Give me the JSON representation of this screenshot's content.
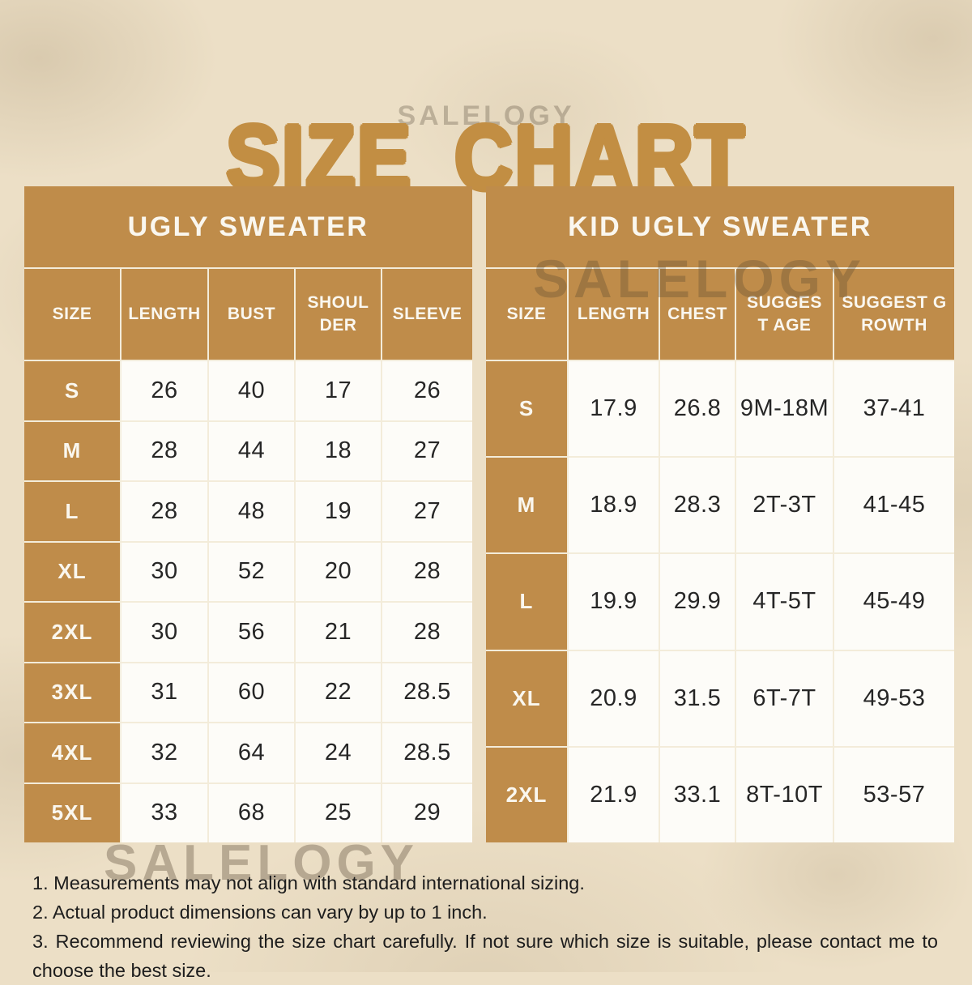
{
  "title": "SIZE CHART",
  "brand_watermark": "SALELOGY",
  "chart_data": [
    {
      "type": "table",
      "title": "UGLY SWEATER",
      "columns": [
        "SIZE",
        "LENGTH",
        "BUST",
        "SHOULDER",
        "SLEEVE"
      ],
      "rows": [
        [
          "S",
          26,
          40,
          17,
          26
        ],
        [
          "M",
          28,
          44,
          18,
          27
        ],
        [
          "L",
          28,
          48,
          19,
          27
        ],
        [
          "XL",
          30,
          52,
          20,
          28
        ],
        [
          "2XL",
          30,
          56,
          21,
          28
        ],
        [
          "3XL",
          31,
          60,
          22,
          28.5
        ],
        [
          "4XL",
          32,
          64,
          24,
          28.5
        ],
        [
          "5XL",
          33,
          68,
          25,
          29
        ]
      ]
    },
    {
      "type": "table",
      "title": "KID UGLY SWEATER",
      "columns": [
        "SIZE",
        "LENGTH",
        "CHEST",
        "SUGGEST AGE",
        "SUGGEST GROWTH"
      ],
      "rows": [
        [
          "S",
          17.9,
          26.8,
          "9M-18M",
          "37-41"
        ],
        [
          "M",
          18.9,
          28.3,
          "2T-3T",
          "41-45"
        ],
        [
          "L",
          19.9,
          29.9,
          "4T-5T",
          "45-49"
        ],
        [
          "XL",
          20.9,
          31.5,
          "6T-7T",
          "49-53"
        ],
        [
          "2XL",
          21.9,
          33.1,
          "8T-10T",
          "53-57"
        ]
      ]
    }
  ],
  "notes": [
    "1. Measurements may not align with standard international sizing.",
    "2. Actual product dimensions can vary by up to 1 inch.",
    "3. Recommend reviewing the size chart carefully. If not sure which size is suitable, please contact me to choose the best size."
  ],
  "colors": {
    "table_tan": "#bf8c4a",
    "title_gold": "#c28e43",
    "background_beige": "#ecdfc6",
    "cell_background": "#fdfcf8",
    "text_dark": "#262626"
  }
}
